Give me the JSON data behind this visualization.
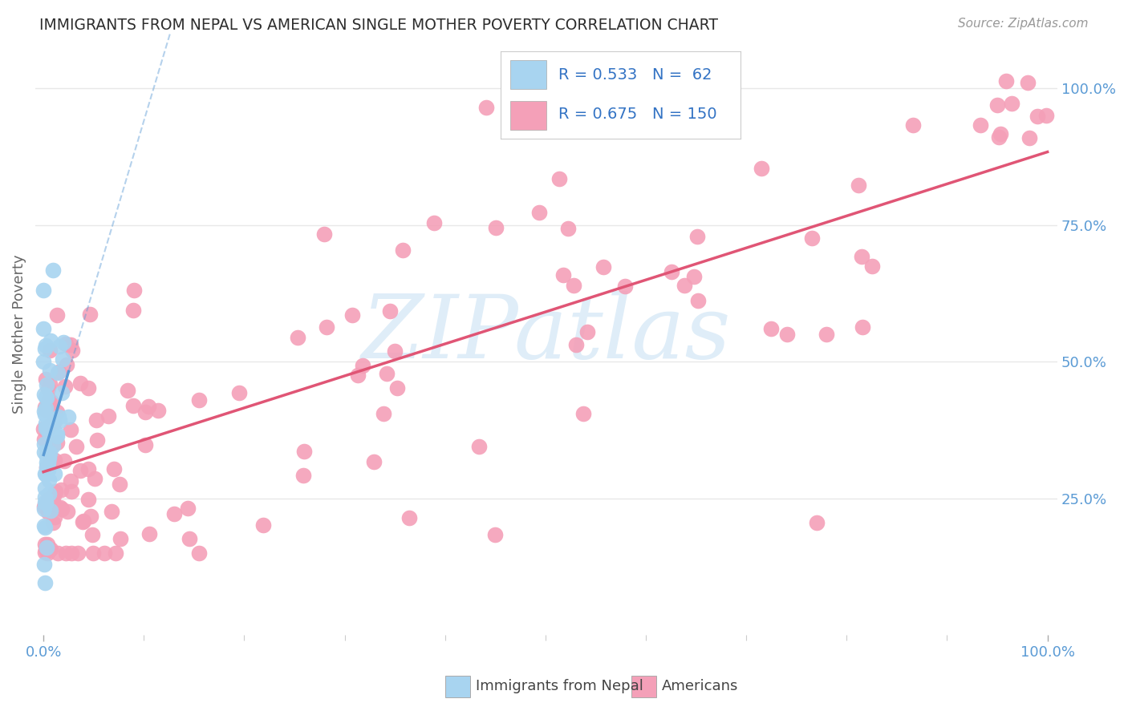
{
  "title": "IMMIGRANTS FROM NEPAL VS AMERICAN SINGLE MOTHER POVERTY CORRELATION CHART",
  "source": "Source: ZipAtlas.com",
  "ylabel": "Single Mother Poverty",
  "legend_label1": "Immigrants from Nepal",
  "legend_label2": "Americans",
  "r1": 0.533,
  "n1": 62,
  "r2": 0.675,
  "n2": 150,
  "color_nepal": "#a8d4f0",
  "color_nepal_line": "#5b9bd5",
  "color_americans": "#f4a0b8",
  "color_americans_line": "#e05575",
  "ytick_labels": [
    "25.0%",
    "50.0%",
    "75.0%",
    "100.0%"
  ],
  "ytick_positions": [
    0.25,
    0.5,
    0.75,
    1.0
  ],
  "watermark": "ZIPatlas",
  "background_color": "#ffffff",
  "grid_color": "#e8e8e8",
  "title_color": "#2d2d2d",
  "source_color": "#999999",
  "tick_color": "#5b9bd5",
  "ylabel_color": "#666666"
}
